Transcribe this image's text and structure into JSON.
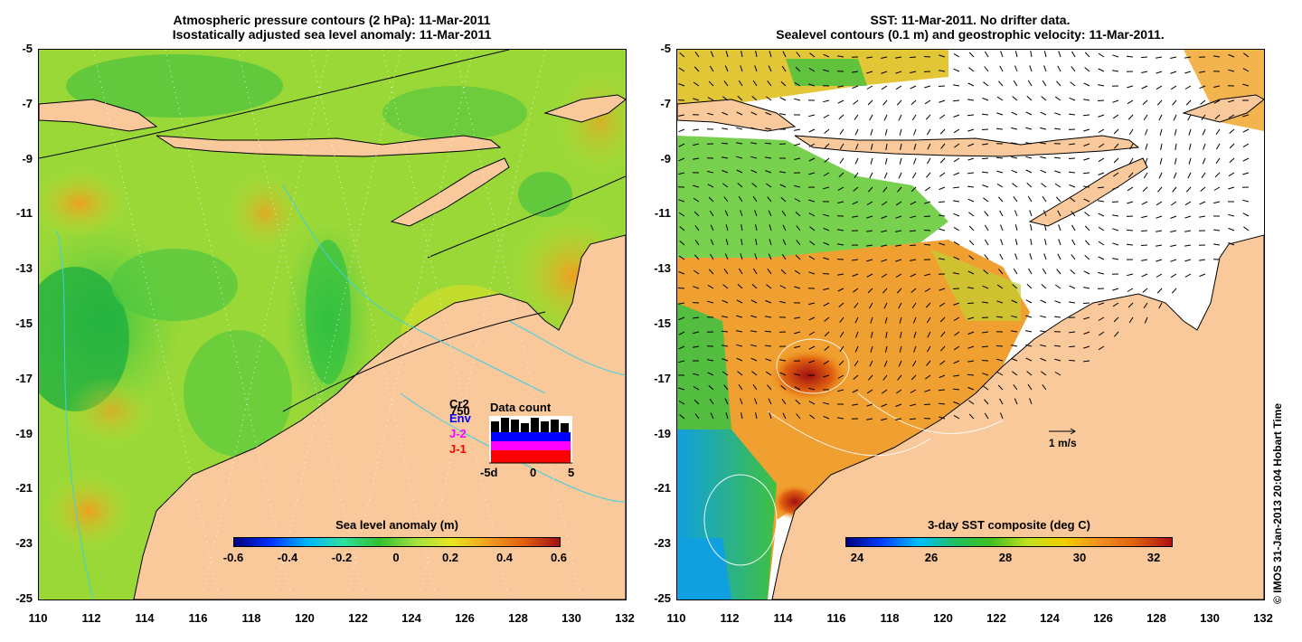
{
  "left_panel": {
    "title_line1": "Atmospheric pressure contours (2 hPa): 11-Mar-2011",
    "title_line2": "Isostatically adjusted sea level anomaly: 11-Mar-2011",
    "colorbar_title": "Sea level anomaly (m)",
    "colorbar_ticks": [
      "-0.6",
      "-0.4",
      "-0.2",
      "0",
      "0.2",
      "0.4",
      "0.6"
    ],
    "colormap": [
      "#00007f",
      "#0030ff",
      "#00b4ff",
      "#30e0a0",
      "#30c030",
      "#a0e040",
      "#e8e820",
      "#f0a020",
      "#e06010",
      "#a01010"
    ],
    "inset": {
      "title": "Data count",
      "satellites": [
        "Cr2",
        "Env",
        "J-2",
        "J-1"
      ],
      "sat_colors": [
        "#000000",
        "#0000ff",
        "#ff00ff",
        "#ff0000"
      ],
      "count_label": "750",
      "x_ticks": [
        "-5d",
        "0",
        "5"
      ]
    }
  },
  "right_panel": {
    "title_line1": "SST: 11-Mar-2011. No drifter data.",
    "title_line2": "Sealevel contours (0.1 m) and geostrophic velocity: 11-Mar-2011.",
    "colorbar_title": "3-day SST composite (deg C)",
    "colorbar_ticks": [
      "24",
      "26",
      "28",
      "30",
      "32"
    ],
    "colormap": [
      "#00007f",
      "#0040ff",
      "#00c0ff",
      "#20c060",
      "#40c020",
      "#c0e020",
      "#f0d000",
      "#f09020",
      "#e06010",
      "#b01010"
    ],
    "scale_label": "1 m/s"
  },
  "axes": {
    "lon_ticks": [
      "110",
      "112",
      "114",
      "116",
      "118",
      "120",
      "122",
      "124",
      "126",
      "128",
      "130",
      "132"
    ],
    "lat_ticks": [
      "-5",
      "-7",
      "-9",
      "-11",
      "-13",
      "-15",
      "-17",
      "-19",
      "-21",
      "-23",
      "-25"
    ]
  },
  "credit": "© IMOS 31-Jan-2013 20:04 Hobart Time",
  "colors": {
    "land": "#f9c89b",
    "sea_green": "#60d040",
    "sea_yellowgreen": "#a8e030",
    "sea_orange": "#f09030",
    "contour_cyan": "#40d0e0",
    "no_data": "#ffffff"
  }
}
